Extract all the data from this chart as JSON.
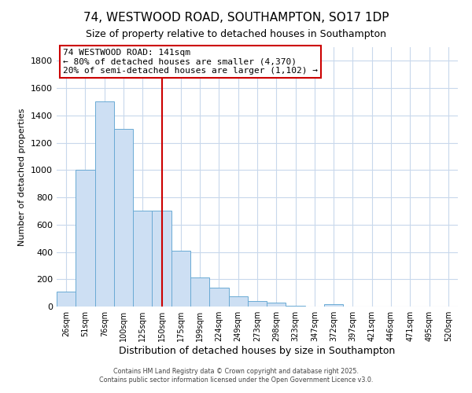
{
  "title": "74, WESTWOOD ROAD, SOUTHAMPTON, SO17 1DP",
  "subtitle": "Size of property relative to detached houses in Southampton",
  "xlabel": "Distribution of detached houses by size in Southampton",
  "ylabel": "Number of detached properties",
  "bar_labels": [
    "26sqm",
    "51sqm",
    "76sqm",
    "100sqm",
    "125sqm",
    "150sqm",
    "175sqm",
    "199sqm",
    "224sqm",
    "249sqm",
    "273sqm",
    "298sqm",
    "323sqm",
    "347sqm",
    "372sqm",
    "397sqm",
    "421sqm",
    "446sqm",
    "471sqm",
    "495sqm",
    "520sqm"
  ],
  "bar_values": [
    110,
    1000,
    1500,
    1300,
    700,
    700,
    410,
    215,
    140,
    75,
    40,
    30,
    5,
    0,
    18,
    0,
    0,
    0,
    0,
    0,
    0
  ],
  "bar_color": "#cddff3",
  "bar_edge_color": "#6aaad4",
  "ylim": [
    0,
    1900
  ],
  "yticks": [
    0,
    200,
    400,
    600,
    800,
    1000,
    1200,
    1400,
    1600,
    1800
  ],
  "vline_x_index": 5,
  "vline_color": "#cc0000",
  "annotation_title": "74 WESTWOOD ROAD: 141sqm",
  "annotation_line1": "← 80% of detached houses are smaller (4,370)",
  "annotation_line2": "20% of semi-detached houses are larger (1,102) →",
  "annotation_box_color": "#ffffff",
  "annotation_box_edge_color": "#cc0000",
  "footer1": "Contains HM Land Registry data © Crown copyright and database right 2025.",
  "footer2": "Contains public sector information licensed under the Open Government Licence v3.0.",
  "bg_color": "#ffffff",
  "grid_color": "#c8d8ec"
}
